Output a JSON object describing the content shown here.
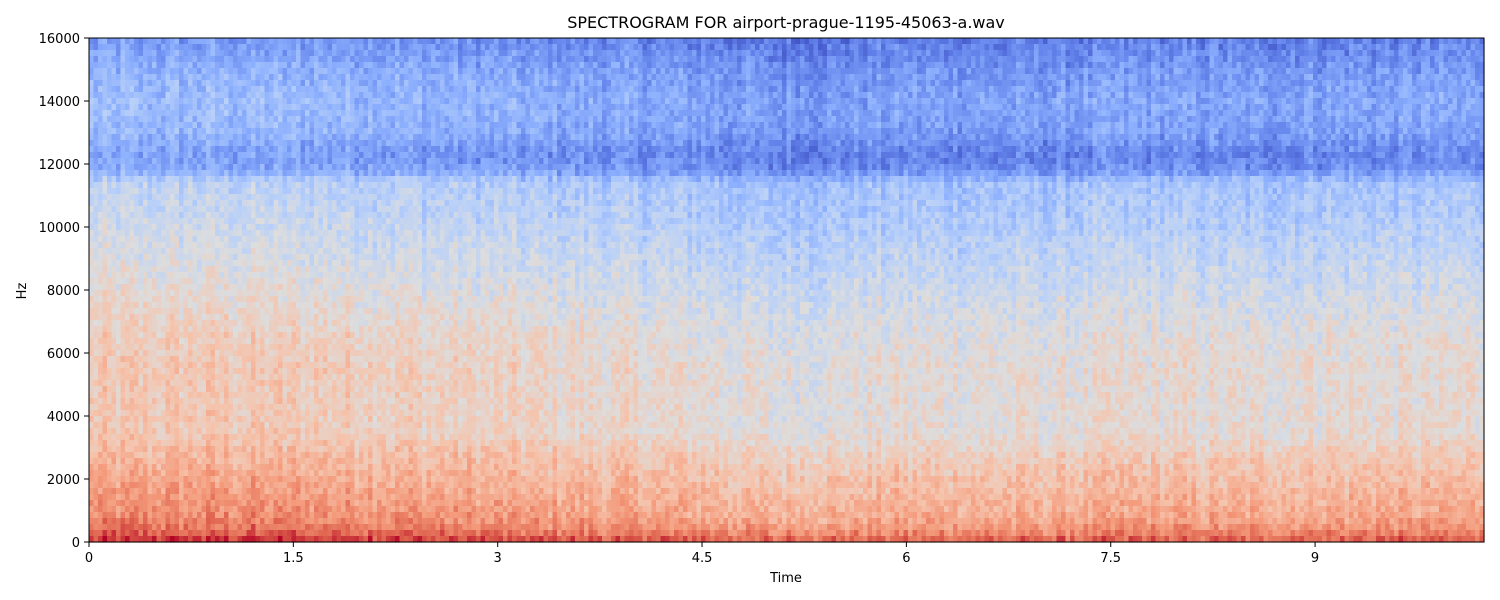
{
  "chart_data": {
    "type": "heatmap",
    "title": "SPECTROGRAM FOR airport-prague-1195-45063-a.wav",
    "xlabel": "Time",
    "ylabel": "Hz",
    "xlim": [
      0,
      10.24
    ],
    "ylim": [
      0,
      16000
    ],
    "x_ticks": [
      "0",
      "1.5",
      "3",
      "4.5",
      "6",
      "7.5",
      "9"
    ],
    "x_tick_values": [
      0,
      1.5,
      3,
      4.5,
      6,
      7.5,
      9
    ],
    "y_ticks": [
      "0",
      "2000",
      "4000",
      "6000",
      "8000",
      "10000",
      "12000",
      "14000",
      "16000"
    ],
    "y_tick_values": [
      0,
      2000,
      4000,
      6000,
      8000,
      10000,
      12000,
      14000,
      16000
    ],
    "colormap": "coolwarm",
    "colors": {
      "low": "#3b4cc0",
      "mid": "#dddddd",
      "high": "#b40426"
    },
    "intensity_profile": {
      "freq_hz": [
        0,
        200,
        400,
        800,
        1500,
        2000,
        2800,
        3500,
        4500,
        5500,
        6500,
        7500,
        8500,
        9500,
        10500,
        11400,
        11800,
        12300,
        13000,
        14000,
        15000,
        15600,
        16000
      ],
      "level": [
        0.92,
        0.86,
        0.8,
        0.74,
        0.7,
        0.67,
        0.62,
        0.56,
        0.56,
        0.56,
        0.54,
        0.5,
        0.46,
        0.42,
        0.38,
        0.36,
        0.2,
        0.17,
        0.24,
        0.26,
        0.22,
        0.18,
        0.15
      ]
    },
    "time_profile": {
      "time_s": [
        0,
        1.0,
        2.0,
        3.0,
        4.0,
        4.5,
        5.0,
        5.5,
        6.0,
        6.5,
        7.0,
        7.5,
        8.0,
        8.5,
        9.0,
        9.5,
        10.24
      ],
      "offset": [
        0.04,
        0.04,
        0.03,
        0.0,
        -0.02,
        -0.03,
        -0.06,
        -0.05,
        -0.04,
        -0.04,
        -0.05,
        -0.03,
        -0.03,
        -0.04,
        -0.03,
        -0.03,
        -0.03
      ]
    },
    "grid": false,
    "legend": "none"
  }
}
